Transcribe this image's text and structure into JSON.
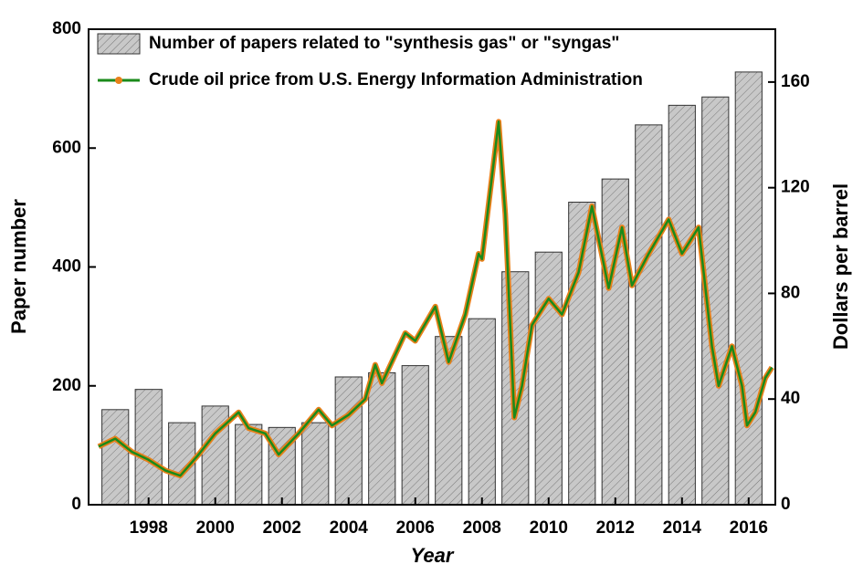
{
  "chart_data": {
    "type": "bar+line",
    "xlabel": "Year",
    "ylabel": "Paper number",
    "y2label": "Dollars per barrel",
    "xlim": [
      1996.2,
      2016.8
    ],
    "xticks": [
      1998,
      2000,
      2002,
      2004,
      2006,
      2008,
      2010,
      2012,
      2014,
      2016
    ],
    "ylim": [
      0,
      800
    ],
    "yticks": [
      0,
      200,
      400,
      600,
      800
    ],
    "y2lim": [
      0,
      180
    ],
    "y2ticks": [
      0,
      40,
      80,
      120,
      160
    ],
    "legend": "upper left",
    "series": [
      {
        "name": "Number of papers related to \"synthesis gas\" or \"syngas\"",
        "type": "bar",
        "color": "#c8c8c8",
        "x": [
          1997,
          1998,
          1999,
          2000,
          2001,
          2002,
          2003,
          2004,
          2005,
          2006,
          2007,
          2008,
          2009,
          2010,
          2011,
          2012,
          2013,
          2014,
          2015,
          2016
        ],
        "values": [
          160,
          194,
          138,
          166,
          135,
          130,
          138,
          215,
          222,
          234,
          283,
          313,
          392,
          425,
          509,
          548,
          639,
          672,
          686,
          728
        ]
      },
      {
        "name": "Crude oil price from U.S. Energy Information Administration",
        "type": "line",
        "axis": "y2",
        "color": "#1a8a1a",
        "edge_color": "#e8801a",
        "x": [
          1996.5,
          1997.0,
          1997.5,
          1998.0,
          1998.5,
          1998.95,
          1999.5,
          2000.0,
          2000.7,
          2001.0,
          2001.5,
          2001.9,
          2002.5,
          2003.1,
          2003.5,
          2004.0,
          2004.5,
          2004.8,
          2005.0,
          2005.7,
          2006.0,
          2006.6,
          2007.0,
          2007.5,
          2007.9,
          2008.0,
          2008.5,
          2008.7,
          2008.97,
          2009.2,
          2009.5,
          2010.0,
          2010.4,
          2010.9,
          2011.3,
          2011.8,
          2012.2,
          2012.5,
          2013.0,
          2013.6,
          2014.0,
          2014.5,
          2014.9,
          2015.1,
          2015.5,
          2015.8,
          2015.95,
          2016.2,
          2016.5,
          2016.7
        ],
        "values": [
          22,
          25,
          20,
          17,
          13,
          11,
          19,
          27,
          35,
          29,
          27,
          19,
          27,
          36,
          30,
          34,
          40,
          53,
          46,
          65,
          62,
          75,
          54,
          72,
          95,
          93,
          145,
          110,
          33,
          45,
          68,
          78,
          72,
          88,
          113,
          82,
          105,
          83,
          95,
          108,
          95,
          105,
          60,
          45,
          60,
          45,
          30,
          35,
          48,
          52
        ]
      }
    ]
  }
}
